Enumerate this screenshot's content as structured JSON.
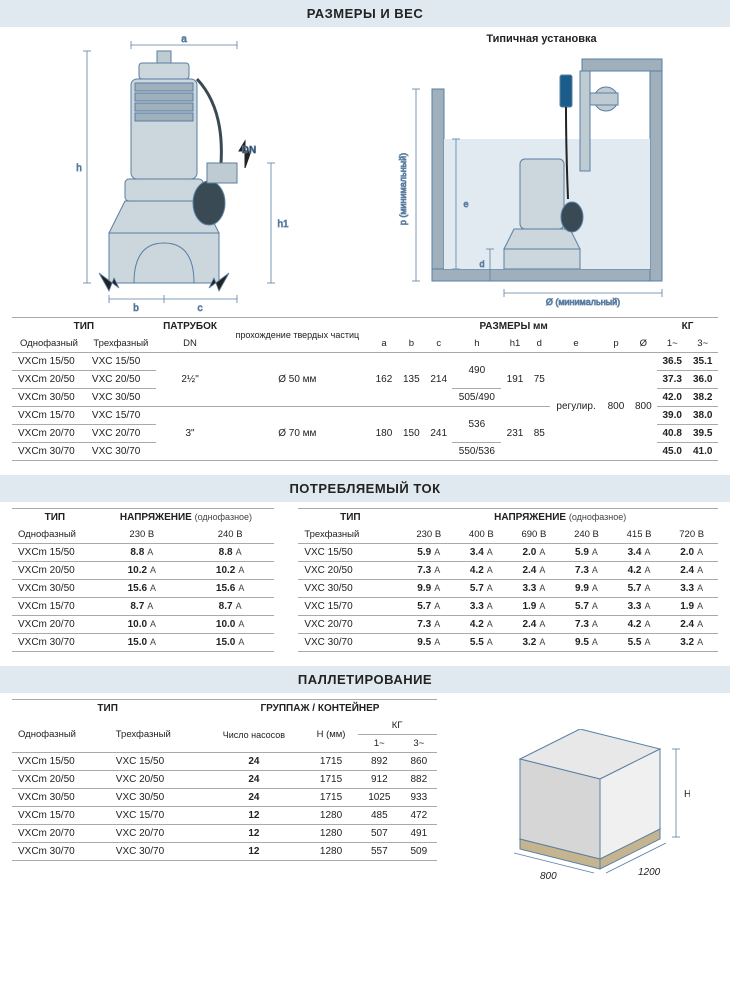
{
  "sections": {
    "dimensions": "РАЗМЕРЫ И ВЕС",
    "installation": "Типичная установка",
    "current": "ПОТРЕБЛЯЕМЫЙ ТОК",
    "pallet": "ПАЛЛЕТИРОВАНИЕ"
  },
  "diagram_labels": {
    "a": "a",
    "b": "b",
    "c": "c",
    "h": "h",
    "h1": "h1",
    "DN": "DN",
    "d": "d",
    "e": "e",
    "p_min": "p (минимальный)",
    "diam_min": "Ø (минимальный)",
    "pallet_h": "H",
    "pallet_800": "800",
    "pallet_1200": "1200"
  },
  "dim_table": {
    "headers": {
      "type": "ТИП",
      "single": "Однофазный",
      "three": "Трехфазный",
      "branch": "ПАТРУБОК",
      "dn": "DN",
      "solids": "прохождение твердых частиц",
      "dims": "РАЗМЕРЫ  мм",
      "a": "a",
      "b": "b",
      "c": "c",
      "h": "h",
      "h1": "h1",
      "d": "d",
      "e": "e",
      "p": "p",
      "diam": "Ø",
      "kg": "КГ",
      "kg1": "1~",
      "kg3": "3~"
    },
    "rows": [
      {
        "m1": "VXCm 15/50",
        "m3": "VXC 15/50",
        "dn": "2½\"",
        "sol": "Ø 50 мм",
        "a": "162",
        "b": "135",
        "c": "214",
        "h": "490",
        "h1": "191",
        "d": "75",
        "e": "регулир.",
        "p": "800",
        "diam": "800",
        "kg1": "36.5",
        "kg3": "35.1"
      },
      {
        "m1": "VXCm 20/50",
        "m3": "VXC 20/50",
        "dn": "",
        "sol": "",
        "a": "",
        "b": "",
        "c": "",
        "h": "",
        "h1": "",
        "d": "",
        "e": "",
        "p": "",
        "diam": "",
        "kg1": "37.3",
        "kg3": "36.0"
      },
      {
        "m1": "VXCm 30/50",
        "m3": "VXC 30/50",
        "dn": "",
        "sol": "",
        "a": "",
        "b": "",
        "c": "",
        "h": "505/490",
        "h1": "",
        "d": "",
        "e": "",
        "p": "",
        "diam": "",
        "kg1": "42.0",
        "kg3": "38.2"
      },
      {
        "m1": "VXCm 15/70",
        "m3": "VXC 15/70",
        "dn": "3\"",
        "sol": "Ø 70 мм",
        "a": "180",
        "b": "150",
        "c": "241",
        "h": "536",
        "h1": "231",
        "d": "85",
        "e": "",
        "p": "",
        "diam": "",
        "kg1": "39.0",
        "kg3": "38.0"
      },
      {
        "m1": "VXCm 20/70",
        "m3": "VXC 20/70",
        "dn": "",
        "sol": "",
        "a": "",
        "b": "",
        "c": "",
        "h": "",
        "h1": "",
        "d": "",
        "e": "",
        "p": "",
        "diam": "",
        "kg1": "40.8",
        "kg3": "39.5"
      },
      {
        "m1": "VXCm 30/70",
        "m3": "VXC 30/70",
        "dn": "",
        "sol": "",
        "a": "",
        "b": "",
        "c": "",
        "h": "550/536",
        "h1": "",
        "d": "",
        "e": "",
        "p": "",
        "diam": "",
        "kg1": "45.0",
        "kg3": "41.0"
      }
    ]
  },
  "current_single": {
    "headers": {
      "type": "ТИП",
      "voltage": "НАПРЯЖЕНИЕ",
      "voltage_sub": "(однофазное)",
      "single": "Однофазный",
      "v230": "230 В",
      "v240": "240 В"
    },
    "rows": [
      {
        "m": "VXCm 15/50",
        "v230": "8.8",
        "v240": "8.8"
      },
      {
        "m": "VXCm 20/50",
        "v230": "10.2",
        "v240": "10.2"
      },
      {
        "m": "VXCm 30/50",
        "v230": "15.6",
        "v240": "15.6"
      },
      {
        "m": "VXCm 15/70",
        "v230": "8.7",
        "v240": "8.7"
      },
      {
        "m": "VXCm 20/70",
        "v230": "10.0",
        "v240": "10.0"
      },
      {
        "m": "VXCm 30/70",
        "v230": "15.0",
        "v240": "15.0"
      }
    ]
  },
  "current_three": {
    "headers": {
      "type": "ТИП",
      "voltage": "НАПРЯЖЕНИЕ",
      "voltage_sub": "(однофазное)",
      "three": "Трехфазный",
      "v230": "230 В",
      "v400": "400 В",
      "v690": "690 В",
      "v240": "240 В",
      "v415": "415 В",
      "v720": "720 В"
    },
    "rows": [
      {
        "m": "VXC 15/50",
        "v": [
          "5.9",
          "3.4",
          "2.0",
          "5.9",
          "3.4",
          "2.0"
        ]
      },
      {
        "m": "VXC 20/50",
        "v": [
          "7.3",
          "4.2",
          "2.4",
          "7.3",
          "4.2",
          "2.4"
        ]
      },
      {
        "m": "VXC 30/50",
        "v": [
          "9.9",
          "5.7",
          "3.3",
          "9.9",
          "5.7",
          "3.3"
        ]
      },
      {
        "m": "VXC 15/70",
        "v": [
          "5.7",
          "3.3",
          "1.9",
          "5.7",
          "3.3",
          "1.9"
        ]
      },
      {
        "m": "VXC 20/70",
        "v": [
          "7.3",
          "4.2",
          "2.4",
          "7.3",
          "4.2",
          "2.4"
        ]
      },
      {
        "m": "VXC 30/70",
        "v": [
          "9.5",
          "5.5",
          "3.2",
          "9.5",
          "5.5",
          "3.2"
        ]
      }
    ]
  },
  "pallet_table": {
    "headers": {
      "type": "ТИП",
      "single": "Однофазный",
      "three": "Трехфазный",
      "group": "ГРУППАЖ / КОНТЕЙНЕР",
      "qty": "Число насосов",
      "h": "H (мм)",
      "kg": "КГ",
      "kg1": "1~",
      "kg3": "3~"
    },
    "rows": [
      {
        "m1": "VXCm 15/50",
        "m3": "VXC 15/50",
        "qty": "24",
        "h": "1715",
        "kg1": "892",
        "kg3": "860"
      },
      {
        "m1": "VXCm 20/50",
        "m3": "VXC 20/50",
        "qty": "24",
        "h": "1715",
        "kg1": "912",
        "kg3": "882"
      },
      {
        "m1": "VXCm 30/50",
        "m3": "VXC 30/50",
        "qty": "24",
        "h": "1715",
        "kg1": "1025",
        "kg3": "933"
      },
      {
        "m1": "VXCm 15/70",
        "m3": "VXC 15/70",
        "qty": "12",
        "h": "1280",
        "kg1": "485",
        "kg3": "472"
      },
      {
        "m1": "VXCm 20/70",
        "m3": "VXC 20/70",
        "qty": "12",
        "h": "1280",
        "kg1": "507",
        "kg3": "491"
      },
      {
        "m1": "VXCm 30/70",
        "m3": "VXC 30/70",
        "qty": "12",
        "h": "1280",
        "kg1": "557",
        "kg3": "509"
      }
    ]
  },
  "colors": {
    "header_bg": "#dfe9ef",
    "blue": "#3b6f9c",
    "line": "#5a7fa3",
    "grid": "#aaa"
  },
  "unit_a": "A"
}
